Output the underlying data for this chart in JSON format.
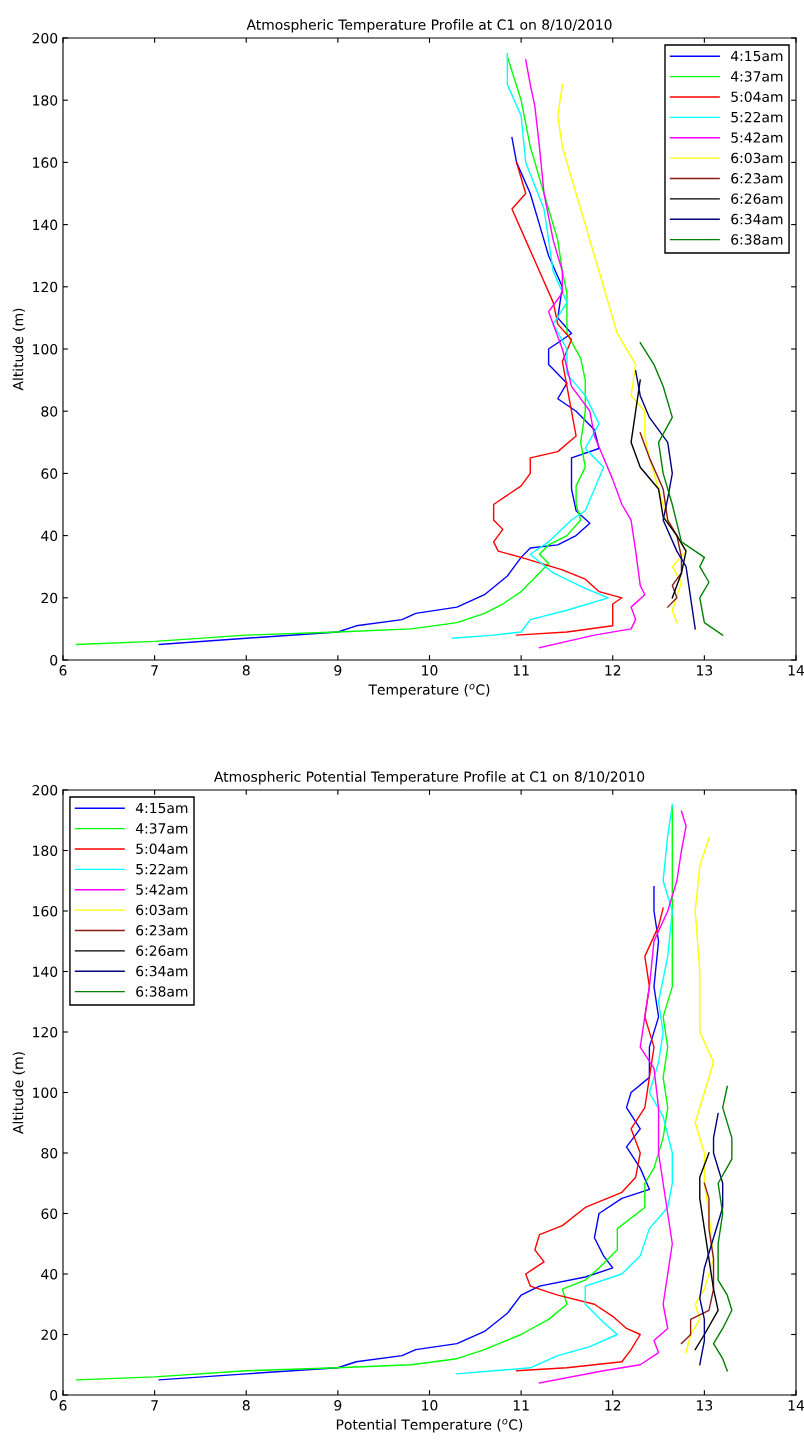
{
  "chart_data": [
    {
      "type": "line",
      "title": "Atmospheric Temperature Profile at C1 on 8/10/2010",
      "xlabel": "Temperature ($^{o}$C)",
      "ylabel": "Altitude (m)",
      "xlim": [
        6,
        14
      ],
      "ylim": [
        0,
        200
      ],
      "xticks": [
        6,
        7,
        8,
        9,
        10,
        11,
        12,
        13,
        14
      ],
      "yticks": [
        0,
        20,
        40,
        60,
        80,
        100,
        120,
        140,
        160,
        180,
        200
      ],
      "grid": false,
      "legend": "top right",
      "series": [
        {
          "name": "4:15am",
          "color": "#0000ff",
          "x": [
            7.05,
            8.0,
            9.0,
            9.2,
            9.7,
            9.85,
            10.3,
            10.6,
            10.85,
            11.0,
            11.1,
            11.4,
            11.6,
            11.75,
            11.6,
            11.55,
            11.55,
            11.85,
            11.8,
            11.6,
            11.4,
            11.5,
            11.3,
            11.3,
            11.55,
            11.4,
            11.45,
            11.3,
            11.2,
            11.1,
            10.95,
            10.9
          ],
          "values": [
            5,
            7,
            9,
            11,
            13,
            15,
            17,
            21,
            27,
            33,
            36,
            37,
            40,
            44,
            48,
            55,
            65,
            68,
            74,
            80,
            84,
            89,
            95,
            100,
            105,
            110,
            120,
            130,
            140,
            150,
            160,
            168
          ]
        },
        {
          "name": "4:37am",
          "color": "#00ff00",
          "x": [
            6.15,
            7.0,
            8.0,
            9.0,
            9.8,
            10.3,
            10.6,
            10.8,
            11.0,
            11.2,
            11.3,
            11.2,
            11.3,
            11.5,
            11.65,
            11.6,
            11.6,
            11.7,
            11.65,
            11.7,
            11.7,
            11.65,
            11.5,
            11.5,
            11.45,
            11.4,
            11.25,
            11.1,
            11.0,
            10.85
          ],
          "values": [
            5,
            6,
            8,
            9,
            10,
            12,
            15,
            18,
            22,
            28,
            31,
            34,
            37,
            40,
            45,
            50,
            56,
            62,
            70,
            80,
            90,
            97,
            105,
            118,
            125,
            135,
            150,
            165,
            180,
            194
          ]
        },
        {
          "name": "5:04am",
          "color": "#ff0000",
          "x": [
            10.95,
            11.5,
            12.0,
            12.0,
            12.0,
            12.1,
            11.85,
            11.7,
            11.45,
            11.0,
            10.75,
            10.7,
            10.8,
            10.7,
            10.7,
            11.0,
            11.1,
            11.1,
            11.4,
            11.6,
            11.55,
            11.5,
            11.45,
            11.55,
            11.4,
            11.35,
            11.2,
            11.05,
            10.9,
            11.05,
            10.95
          ],
          "values": [
            8,
            9,
            11,
            15,
            18,
            20,
            22,
            26,
            29,
            33,
            35,
            38,
            42,
            45,
            50,
            56,
            60,
            65,
            67,
            72,
            80,
            88,
            96,
            103,
            108,
            115,
            125,
            135,
            145,
            150,
            160
          ]
        },
        {
          "name": "5:22am",
          "color": "#00ffff",
          "x": [
            10.25,
            10.7,
            11.0,
            11.1,
            11.5,
            11.95,
            11.7,
            11.35,
            11.1,
            11.3,
            11.55,
            11.7,
            11.8,
            11.9,
            11.7,
            11.85,
            11.7,
            11.5,
            11.5,
            11.35,
            11.5,
            11.35,
            11.3,
            11.25,
            11.05,
            11.0,
            10.85,
            10.85
          ],
          "values": [
            7,
            8,
            9,
            13,
            16,
            20,
            23,
            28,
            34,
            38,
            45,
            48,
            55,
            62,
            68,
            76,
            85,
            92,
            100,
            108,
            115,
            125,
            135,
            145,
            160,
            175,
            185,
            195
          ]
        },
        {
          "name": "5:42am",
          "color": "#ff00ff",
          "x": [
            11.2,
            11.8,
            12.2,
            12.25,
            12.2,
            12.35,
            12.3,
            12.25,
            12.2,
            12.1,
            12.0,
            11.9,
            11.8,
            11.75,
            11.55,
            11.45,
            11.3,
            11.45,
            11.45,
            11.35,
            11.25,
            11.2,
            11.15,
            11.1,
            11.05
          ],
          "values": [
            4,
            8,
            10,
            13,
            17,
            21,
            24,
            35,
            45,
            50,
            58,
            65,
            72,
            80,
            88,
            100,
            112,
            118,
            125,
            135,
            150,
            165,
            178,
            185,
            193
          ]
        },
        {
          "name": "6:03am",
          "color": "#ffff00",
          "x": [
            12.7,
            12.65,
            12.75,
            12.65,
            12.8,
            12.6,
            12.5,
            12.4,
            12.35,
            12.35,
            12.2,
            12.25,
            12.05,
            11.95,
            11.85,
            11.7,
            11.55,
            11.45,
            11.4,
            11.45
          ],
          "values": [
            12,
            16,
            25,
            30,
            35,
            45,
            55,
            65,
            72,
            80,
            85,
            95,
            105,
            115,
            125,
            140,
            155,
            165,
            175,
            185
          ]
        },
        {
          "name": "6:23am",
          "color": "#8b1a1a",
          "x": [
            12.6,
            12.7,
            12.65,
            12.75,
            12.75,
            12.7,
            12.6,
            12.55,
            12.4,
            12.3
          ],
          "values": [
            17,
            20,
            24,
            28,
            33,
            40,
            45,
            55,
            65,
            73
          ]
        },
        {
          "name": "6:26am",
          "color": "#000000",
          "x": [
            12.65,
            12.75,
            12.8,
            12.7,
            12.55,
            12.5,
            12.3,
            12.2,
            12.25,
            12.3
          ],
          "values": [
            20,
            28,
            35,
            40,
            46,
            55,
            62,
            70,
            80,
            90
          ]
        },
        {
          "name": "6:34am",
          "color": "#000080",
          "x": [
            12.9,
            12.85,
            12.8,
            12.7,
            12.55,
            12.6,
            12.65,
            12.6,
            12.4,
            12.3,
            12.25
          ],
          "values": [
            10,
            20,
            30,
            35,
            45,
            52,
            60,
            70,
            78,
            85,
            93
          ]
        },
        {
          "name": "6:38am",
          "color": "#008000",
          "x": [
            13.2,
            13.0,
            12.95,
            13.05,
            12.95,
            13.0,
            12.75,
            12.65,
            12.55,
            12.5,
            12.65,
            12.55,
            12.45,
            12.3
          ],
          "values": [
            8,
            12,
            20,
            25,
            30,
            33,
            38,
            50,
            60,
            70,
            78,
            88,
            95,
            102
          ]
        }
      ]
    },
    {
      "type": "line",
      "title": "Atmospheric Potential Temperature Profile at C1 on 8/10/2010",
      "xlabel": "Potential Temperature ($^{o}$C)",
      "ylabel": "Altitude (m)",
      "xlim": [
        6,
        14
      ],
      "ylim": [
        0,
        200
      ],
      "xticks": [
        6,
        7,
        8,
        9,
        10,
        11,
        12,
        13,
        14
      ],
      "yticks": [
        0,
        20,
        40,
        60,
        80,
        100,
        120,
        140,
        160,
        180,
        200
      ],
      "grid": false,
      "legend": "top left",
      "series": [
        {
          "name": "4:15am",
          "color": "#0000ff",
          "x": [
            7.05,
            8.0,
            9.0,
            9.2,
            9.7,
            9.85,
            10.3,
            10.6,
            10.85,
            11.0,
            11.2,
            11.7,
            12.0,
            11.9,
            11.8,
            11.85,
            12.1,
            12.4,
            12.3,
            12.15,
            12.3,
            12.15,
            12.2,
            12.4,
            12.4,
            12.5,
            12.45,
            12.5,
            12.45,
            12.45
          ],
          "values": [
            5,
            7,
            9,
            11,
            13,
            15,
            17,
            21,
            27,
            33,
            36,
            39,
            42,
            46,
            52,
            60,
            65,
            68,
            75,
            82,
            88,
            95,
            100,
            105,
            115,
            125,
            135,
            150,
            160,
            168
          ]
        },
        {
          "name": "4:37am",
          "color": "#00ff00",
          "x": [
            6.15,
            7.0,
            8.0,
            9.0,
            9.8,
            10.3,
            10.6,
            11.0,
            11.3,
            11.5,
            11.45,
            11.7,
            11.85,
            12.05,
            12.05,
            12.35,
            12.35,
            12.45,
            12.55,
            12.6,
            12.55,
            12.6,
            12.55,
            12.65,
            12.65,
            12.65,
            12.65,
            12.65
          ],
          "values": [
            5,
            6,
            8,
            9,
            10,
            12,
            15,
            20,
            25,
            30,
            35,
            38,
            42,
            48,
            55,
            62,
            70,
            75,
            85,
            95,
            105,
            115,
            125,
            135,
            150,
            165,
            180,
            195
          ]
        },
        {
          "name": "5:04am",
          "color": "#ff0000",
          "x": [
            10.95,
            11.5,
            12.1,
            12.2,
            12.3,
            12.15,
            12.0,
            11.8,
            11.4,
            11.1,
            11.05,
            11.25,
            11.15,
            11.2,
            11.45,
            11.7,
            12.1,
            12.25,
            12.3,
            12.2,
            12.35,
            12.4,
            12.45,
            12.35,
            12.4,
            12.35,
            12.5,
            12.55
          ],
          "values": [
            8,
            9,
            11,
            15,
            20,
            22,
            26,
            30,
            33,
            36,
            40,
            44,
            48,
            53,
            56,
            62,
            67,
            72,
            80,
            88,
            95,
            105,
            115,
            125,
            135,
            145,
            155,
            161
          ]
        },
        {
          "name": "5:22am",
          "color": "#00ffff",
          "x": [
            10.3,
            10.7,
            11.1,
            11.4,
            11.75,
            12.05,
            11.9,
            11.7,
            11.7,
            12.1,
            12.3,
            12.4,
            12.6,
            12.65,
            12.65,
            12.55,
            12.4,
            12.5,
            12.55,
            12.5,
            12.6,
            12.65,
            12.55,
            12.6,
            12.65
          ],
          "values": [
            7,
            8,
            9,
            13,
            16,
            20,
            24,
            30,
            36,
            40,
            46,
            55,
            62,
            70,
            80,
            92,
            100,
            110,
            120,
            130,
            145,
            160,
            170,
            185,
            195
          ]
        },
        {
          "name": "5:42am",
          "color": "#ff00ff",
          "x": [
            11.2,
            11.9,
            12.3,
            12.5,
            12.45,
            12.6,
            12.55,
            12.6,
            12.65,
            12.6,
            12.55,
            12.5,
            12.5,
            12.45,
            12.3,
            12.35,
            12.4,
            12.45,
            12.6,
            12.7,
            12.75,
            12.8,
            12.75
          ],
          "values": [
            4,
            8,
            10,
            14,
            18,
            22,
            30,
            40,
            50,
            60,
            70,
            80,
            95,
            108,
            115,
            125,
            135,
            150,
            160,
            170,
            180,
            188,
            193
          ]
        },
        {
          "name": "6:03am",
          "color": "#ffff00",
          "x": [
            12.8,
            12.85,
            12.95,
            12.9,
            13.0,
            13.1,
            13.05,
            13.0,
            13.0,
            12.9,
            13.0,
            13.1,
            12.95,
            12.95,
            12.9,
            12.95,
            13.05
          ],
          "values": [
            14,
            20,
            25,
            30,
            35,
            45,
            60,
            70,
            80,
            90,
            100,
            110,
            120,
            140,
            160,
            175,
            184
          ]
        },
        {
          "name": "6:23am",
          "color": "#8b1a1a",
          "x": [
            12.75,
            12.85,
            12.85,
            13.05,
            13.1,
            13.1,
            13.05,
            13.05,
            13.0
          ],
          "values": [
            17,
            20,
            25,
            28,
            35,
            45,
            55,
            65,
            70
          ]
        },
        {
          "name": "6:26am",
          "color": "#000000",
          "x": [
            12.9,
            13.0,
            13.15,
            13.1,
            13.05,
            13.0,
            12.95,
            12.95,
            13.05
          ],
          "values": [
            15,
            20,
            28,
            35,
            45,
            55,
            65,
            72,
            80
          ]
        },
        {
          "name": "6:34am",
          "color": "#000080",
          "x": [
            12.95,
            13.0,
            13.0,
            12.95,
            13.0,
            13.1,
            13.2,
            13.2,
            13.1,
            13.1,
            13.15
          ],
          "values": [
            10,
            18,
            25,
            32,
            42,
            52,
            62,
            70,
            80,
            85,
            93
          ]
        },
        {
          "name": "6:38am",
          "color": "#008000",
          "x": [
            13.25,
            13.2,
            13.1,
            13.2,
            13.3,
            13.25,
            13.15,
            13.15,
            13.2,
            13.15,
            13.3,
            13.3,
            13.2,
            13.25
          ],
          "values": [
            8,
            12,
            17,
            22,
            28,
            33,
            38,
            50,
            60,
            70,
            78,
            85,
            95,
            102
          ]
        }
      ]
    }
  ]
}
